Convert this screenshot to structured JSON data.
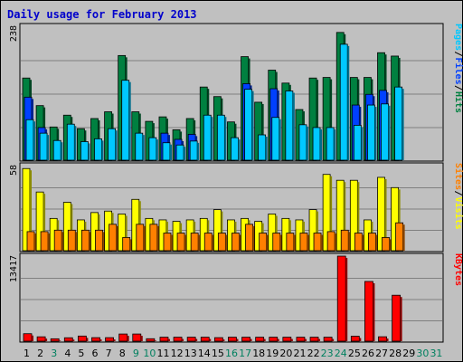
{
  "chart_data": {
    "type": "bar",
    "title": "Daily usage for February 2013",
    "categories": [
      "1",
      "2",
      "3",
      "4",
      "5",
      "6",
      "7",
      "8",
      "9",
      "10",
      "11",
      "12",
      "13",
      "14",
      "15",
      "16",
      "17",
      "18",
      "19",
      "20",
      "21",
      "22",
      "23",
      "24",
      "25",
      "26",
      "27",
      "28",
      "29",
      "30",
      "31"
    ],
    "weekend_days": [
      3,
      9,
      10,
      16,
      17,
      23,
      24,
      30,
      31
    ],
    "panels": [
      {
        "name": "hits-files-pages",
        "ymax": 238,
        "ymax_label": "238",
        "legend": [
          {
            "label": "Pages",
            "color": "#00c8ff"
          },
          {
            "label": "Files",
            "color": "#0040ff"
          },
          {
            "label": "Hits",
            "color": "#008040"
          }
        ],
        "series": [
          {
            "name": "Hits",
            "color": "#008040",
            "values": [
              146,
              97,
              59,
              80,
              56,
              74,
              86,
              186,
              86,
              69,
              77,
              54,
              74,
              130,
              113,
              68,
              184,
              103,
              160,
              137,
              90,
              146,
              147,
              227,
              147,
              147,
              191,
              185
            ]
          },
          {
            "name": "Files",
            "color": "#0040ff",
            "values": [
              112,
              58,
              0,
              0,
              0,
              0,
              0,
              0,
              0,
              0,
              48,
              37,
              46,
              0,
              0,
              0,
              136,
              0,
              127,
              0,
              0,
              0,
              0,
              0,
              98,
              117,
              124,
              0
            ]
          },
          {
            "name": "Pages",
            "color": "#00c8ff",
            "values": [
              72,
              48,
              35,
              64,
              33,
              38,
              56,
              142,
              48,
              40,
              31,
              27,
              34,
              80,
              80,
              40,
              126,
              45,
              76,
              123,
              63,
              58,
              58,
              206,
              62,
              98,
              100,
              130
            ]
          }
        ]
      },
      {
        "name": "visits-sites",
        "ymax": 58,
        "ymax_label": "58",
        "legend": [
          {
            "label": "Sites",
            "color": "#ff8000"
          },
          {
            "label": "Visits",
            "color": "#ffff00"
          }
        ],
        "series": [
          {
            "name": "Visits",
            "color": "#ffff00",
            "values": [
              56,
              40,
              22,
              33,
              21,
              26,
              27,
              25,
              35,
              22,
              21,
              20,
              21,
              22,
              28,
              21,
              22,
              20,
              25,
              22,
              21,
              28,
              52,
              48,
              48,
              21,
              50,
              43
            ]
          },
          {
            "name": "Sites",
            "color": "#ff8000",
            "values": [
              13,
              13,
              14,
              14,
              14,
              14,
              18,
              9,
              18,
              18,
              12,
              12,
              12,
              12,
              12,
              12,
              18,
              12,
              12,
              12,
              12,
              12,
              13,
              14,
              12,
              12,
              9,
              19
            ]
          }
        ]
      },
      {
        "name": "kbytes",
        "ymax": 13417,
        "ymax_label": "13417",
        "legend": [
          {
            "label": "KBytes",
            "color": "#ff0000"
          }
        ],
        "series": [
          {
            "name": "KBytes",
            "color": "#ff0000",
            "values": [
              1180,
              690,
              380,
              540,
              810,
              560,
              560,
              1130,
              1130,
              390,
              630,
              630,
              630,
              630,
              560,
              630,
              630,
              630,
              630,
              630,
              630,
              630,
              630,
              13417,
              780,
              9420,
              700,
              7250
            ]
          }
        ]
      }
    ]
  }
}
